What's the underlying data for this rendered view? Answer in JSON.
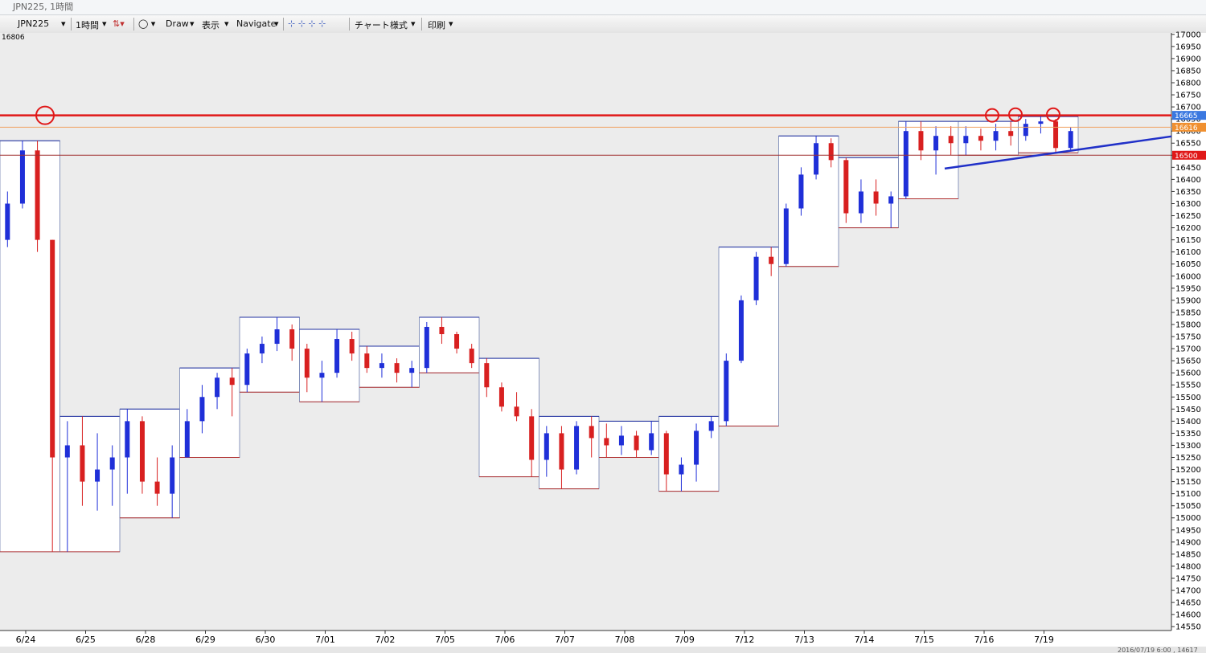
{
  "window": {
    "title": "JPN225, 1時間",
    "status": "2016/07/19 6:00 , 14617"
  },
  "toolbar": {
    "symbol": "JPN225",
    "period": "1時間",
    "draw": "Draw",
    "view": "表示",
    "navigate": "Navigate",
    "chart_style": "チャート様式",
    "print": "印刷"
  },
  "chart_data": {
    "type": "candlestick",
    "corner_label": "16806",
    "ylim": [
      14534,
      17006
    ],
    "yticks": [
      17000,
      16950,
      16900,
      16850,
      16800,
      16750,
      16700,
      16650,
      16600,
      16550,
      16500,
      16450,
      16400,
      16350,
      16300,
      16250,
      16200,
      16150,
      16100,
      16050,
      16000,
      15950,
      15900,
      15850,
      15800,
      15750,
      15700,
      15650,
      15600,
      15550,
      15500,
      15450,
      15400,
      15350,
      15300,
      15250,
      15200,
      15150,
      15100,
      15050,
      15000,
      14950,
      14900,
      14850,
      14800,
      14750,
      14700,
      14650,
      14600,
      14550
    ],
    "up_color": "#1f2fd8",
    "down_color": "#d82020",
    "days": [
      {
        "label": "6/24",
        "candles": [
          [
            16150,
            16350,
            16120,
            16300
          ],
          [
            16300,
            16560,
            16280,
            16520
          ],
          [
            16520,
            16560,
            16100,
            16150
          ],
          [
            16150,
            16150,
            14860,
            15250
          ]
        ]
      },
      {
        "label": "6/25",
        "candles": [
          [
            15250,
            15400,
            14860,
            15300
          ],
          [
            15300,
            15420,
            15050,
            15150
          ],
          [
            15150,
            15350,
            15030,
            15200
          ],
          [
            15200,
            15300,
            15050,
            15250
          ]
        ]
      },
      {
        "label": "6/28",
        "candles": [
          [
            15250,
            15450,
            15100,
            15400
          ],
          [
            15400,
            15420,
            15100,
            15150
          ],
          [
            15150,
            15250,
            15050,
            15100
          ],
          [
            15100,
            15300,
            15000,
            15250
          ]
        ]
      },
      {
        "label": "6/29",
        "candles": [
          [
            15250,
            15450,
            15250,
            15400
          ],
          [
            15400,
            15550,
            15350,
            15500
          ],
          [
            15500,
            15600,
            15450,
            15580
          ],
          [
            15580,
            15620,
            15420,
            15550
          ]
        ]
      },
      {
        "label": "6/30",
        "candles": [
          [
            15550,
            15700,
            15520,
            15680
          ],
          [
            15680,
            15750,
            15640,
            15720
          ],
          [
            15720,
            15830,
            15690,
            15780
          ],
          [
            15780,
            15800,
            15650,
            15700
          ]
        ]
      },
      {
        "label": "7/01",
        "candles": [
          [
            15700,
            15720,
            15520,
            15580
          ],
          [
            15580,
            15650,
            15480,
            15600
          ],
          [
            15600,
            15780,
            15580,
            15740
          ],
          [
            15740,
            15770,
            15650,
            15680
          ]
        ]
      },
      {
        "label": "7/02",
        "candles": [
          [
            15680,
            15710,
            15600,
            15620
          ],
          [
            15620,
            15680,
            15580,
            15640
          ],
          [
            15640,
            15660,
            15560,
            15600
          ],
          [
            15600,
            15650,
            15540,
            15620
          ]
        ]
      },
      {
        "label": "7/05",
        "candles": [
          [
            15620,
            15810,
            15600,
            15790
          ],
          [
            15790,
            15830,
            15720,
            15760
          ],
          [
            15760,
            15770,
            15680,
            15700
          ],
          [
            15700,
            15720,
            15620,
            15640
          ]
        ]
      },
      {
        "label": "7/06",
        "candles": [
          [
            15640,
            15660,
            15500,
            15540
          ],
          [
            15540,
            15560,
            15440,
            15460
          ],
          [
            15460,
            15520,
            15400,
            15420
          ],
          [
            15420,
            15450,
            15170,
            15240
          ]
        ]
      },
      {
        "label": "7/07",
        "candles": [
          [
            15240,
            15380,
            15170,
            15350
          ],
          [
            15350,
            15380,
            15120,
            15200
          ],
          [
            15200,
            15400,
            15180,
            15380
          ],
          [
            15380,
            15420,
            15250,
            15330
          ]
        ]
      },
      {
        "label": "7/08",
        "candles": [
          [
            15330,
            15390,
            15250,
            15300
          ],
          [
            15300,
            15380,
            15260,
            15340
          ],
          [
            15340,
            15360,
            15250,
            15280
          ],
          [
            15280,
            15400,
            15260,
            15350
          ]
        ]
      },
      {
        "label": "7/09",
        "candles": [
          [
            15350,
            15360,
            15110,
            15180
          ],
          [
            15180,
            15250,
            15110,
            15220
          ],
          [
            15220,
            15390,
            15150,
            15360
          ],
          [
            15360,
            15420,
            15330,
            15400
          ]
        ]
      },
      {
        "label": "7/12",
        "candles": [
          [
            15400,
            15680,
            15380,
            15650
          ],
          [
            15650,
            15920,
            15640,
            15900
          ],
          [
            15900,
            16100,
            15880,
            16080
          ],
          [
            16080,
            16120,
            16000,
            16050
          ]
        ]
      },
      {
        "label": "7/13",
        "candles": [
          [
            16050,
            16300,
            16040,
            16280
          ],
          [
            16280,
            16450,
            16250,
            16420
          ],
          [
            16420,
            16580,
            16400,
            16550
          ],
          [
            16550,
            16570,
            16450,
            16480
          ]
        ]
      },
      {
        "label": "7/14",
        "candles": [
          [
            16480,
            16490,
            16220,
            16260
          ],
          [
            16260,
            16400,
            16220,
            16350
          ],
          [
            16350,
            16400,
            16250,
            16300
          ],
          [
            16300,
            16350,
            16200,
            16330
          ]
        ]
      },
      {
        "label": "7/15",
        "candles": [
          [
            16330,
            16640,
            16320,
            16600
          ],
          [
            16600,
            16640,
            16480,
            16520
          ],
          [
            16520,
            16620,
            16420,
            16580
          ],
          [
            16580,
            16620,
            16500,
            16550
          ]
        ]
      },
      {
        "label": "7/16",
        "candles": [
          [
            16550,
            16620,
            16500,
            16580
          ],
          [
            16580,
            16610,
            16520,
            16560
          ],
          [
            16560,
            16630,
            16520,
            16600
          ],
          [
            16600,
            16640,
            16540,
            16580
          ]
        ]
      },
      {
        "label": "7/19",
        "candles": [
          [
            16580,
            16650,
            16560,
            16630
          ],
          [
            16630,
            16660,
            16590,
            16640
          ],
          [
            16640,
            16650,
            16510,
            16530
          ],
          [
            16530,
            16616,
            16520,
            16600
          ]
        ]
      }
    ],
    "levels": [
      {
        "value": 16665,
        "color": "#e01818",
        "badge": "#3a78e0"
      },
      {
        "value": 16616,
        "color": "#f0a060",
        "badge": "#f09030"
      },
      {
        "value": 16500,
        "color": "#a03030",
        "badge": "#e01818"
      }
    ],
    "trendline": {
      "start": 16445,
      "end": 16578,
      "color": "#2030c8"
    },
    "markers": [
      16665,
      16665,
      16668,
      16668
    ]
  }
}
